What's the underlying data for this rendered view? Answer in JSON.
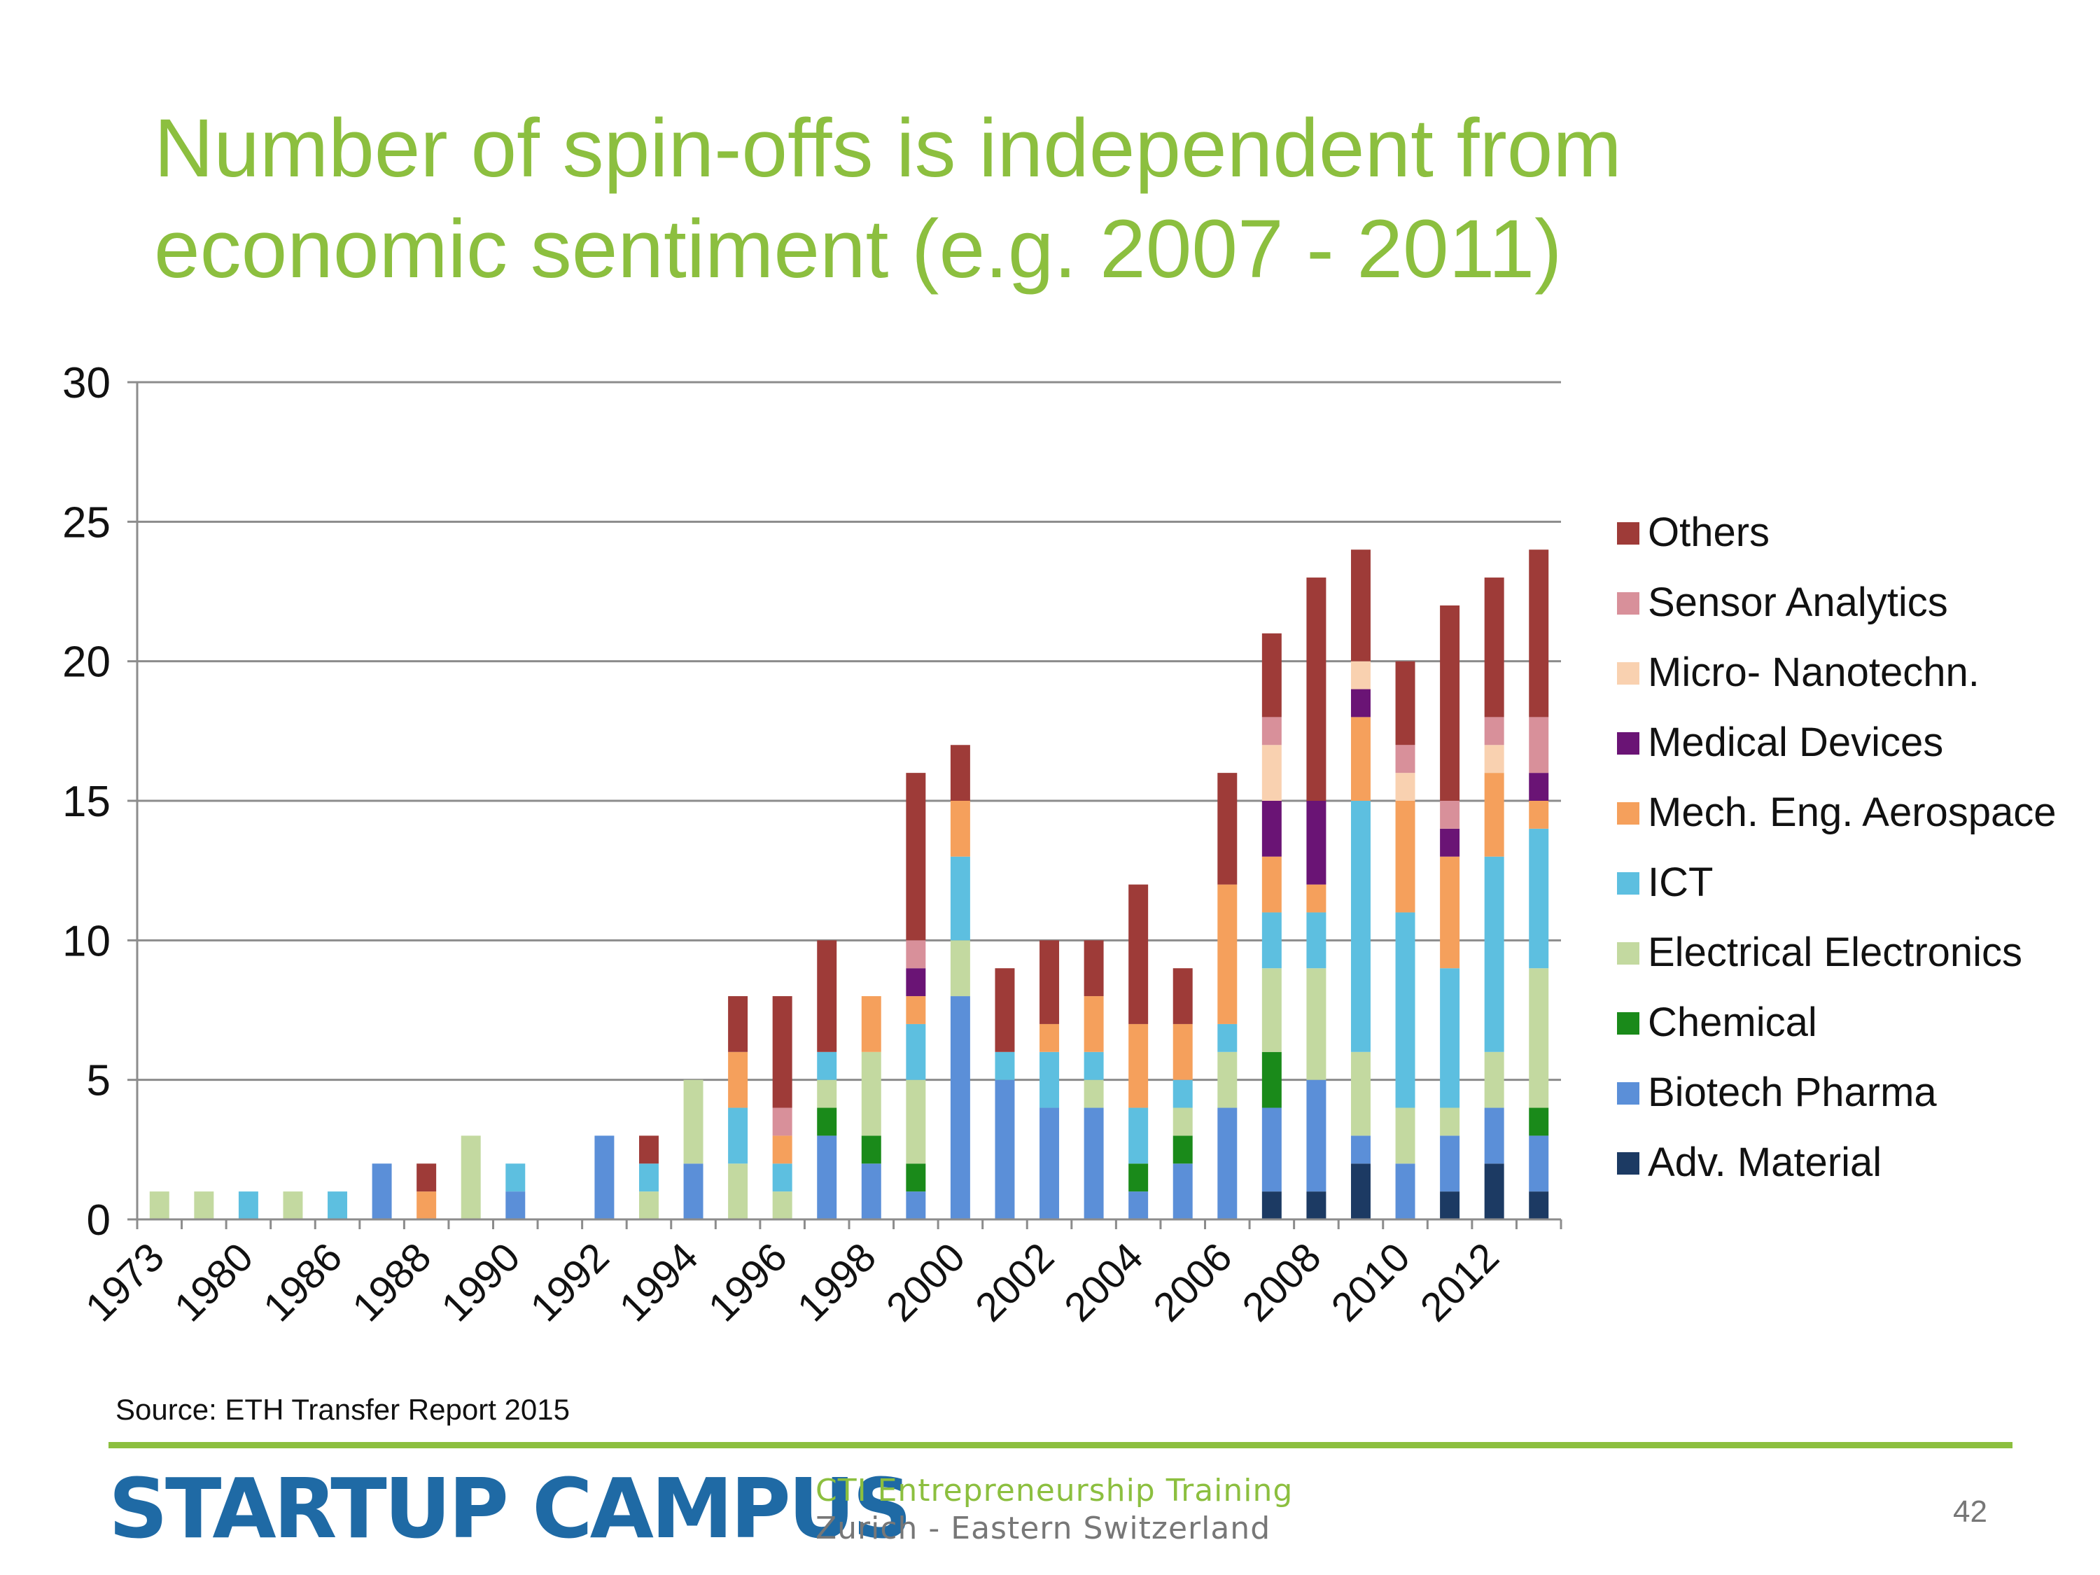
{
  "slide": {
    "title_line1": "Number of spin-offs is independent from",
    "title_line2": "economic sentiment (e.g. 2007 - 2011)",
    "source": "Source: ETH Transfer Report 2015",
    "brand": "STARTUP CAMPUS",
    "brand_sub1": "CTI Entrepreneurship Training",
    "brand_sub2": "Zurich - Eastern Switzerland",
    "page_number": "42",
    "accent_color": "#8cbf3f",
    "brand_color": "#1f6aa5"
  },
  "chart_data": {
    "type": "bar",
    "stacked": true,
    "ylim": [
      0,
      30
    ],
    "yticks": [
      0,
      5,
      10,
      15,
      20,
      25,
      30
    ],
    "grid": true,
    "legend_position": "right",
    "x_tick_labels": [
      "1973",
      "1980",
      "1986",
      "1988",
      "1990",
      "1992",
      "1994",
      "1996",
      "1998",
      "2000",
      "2002",
      "2004",
      "2006",
      "2008",
      "2010",
      "2012"
    ],
    "bar_count": 32,
    "series": [
      {
        "name": "Adv. Material",
        "color": "#1c3a63",
        "values": [
          0,
          0,
          0,
          0,
          0,
          0,
          0,
          0,
          0,
          0,
          0,
          0,
          0,
          0,
          0,
          0,
          0,
          0,
          0,
          0,
          0,
          0,
          0,
          0,
          0,
          1,
          1,
          2,
          0,
          1,
          2,
          1
        ]
      },
      {
        "name": "Biotech Pharma",
        "color": "#5b8fd8",
        "values": [
          0,
          0,
          0,
          0,
          0,
          2,
          0,
          0,
          1,
          0,
          3,
          0,
          2,
          0,
          0,
          3,
          2,
          1,
          8,
          5,
          4,
          4,
          1,
          2,
          4,
          3,
          4,
          1,
          2,
          2,
          2,
          2
        ]
      },
      {
        "name": "Chemical",
        "color": "#1a8a1a",
        "values": [
          0,
          0,
          0,
          0,
          0,
          0,
          0,
          0,
          0,
          0,
          0,
          0,
          0,
          0,
          0,
          1,
          1,
          1,
          0,
          0,
          0,
          0,
          1,
          1,
          0,
          2,
          0,
          0,
          0,
          0,
          0,
          1
        ]
      },
      {
        "name": "Electrical Electronics",
        "color": "#c3d9a0",
        "values": [
          1,
          1,
          0,
          1,
          0,
          0,
          0,
          3,
          0,
          0,
          0,
          1,
          3,
          2,
          1,
          1,
          3,
          3,
          2,
          0,
          0,
          1,
          0,
          1,
          2,
          3,
          4,
          3,
          2,
          1,
          2,
          5
        ]
      },
      {
        "name": "ICT",
        "color": "#5dbfe0",
        "values": [
          0,
          0,
          1,
          0,
          1,
          0,
          0,
          0,
          1,
          0,
          0,
          1,
          0,
          2,
          1,
          1,
          0,
          2,
          3,
          1,
          2,
          1,
          2,
          1,
          1,
          2,
          2,
          9,
          7,
          5,
          7,
          5
        ]
      },
      {
        "name": "Mech. Eng. Aerospace",
        "color": "#f5a05c",
        "values": [
          0,
          0,
          0,
          0,
          0,
          0,
          1,
          0,
          0,
          0,
          0,
          0,
          0,
          2,
          1,
          0,
          2,
          1,
          2,
          0,
          1,
          2,
          3,
          2,
          5,
          2,
          1,
          3,
          4,
          4,
          3,
          1
        ]
      },
      {
        "name": "Medical Devices",
        "color": "#6a1475",
        "values": [
          0,
          0,
          0,
          0,
          0,
          0,
          0,
          0,
          0,
          0,
          0,
          0,
          0,
          0,
          0,
          0,
          0,
          1,
          0,
          0,
          0,
          0,
          0,
          0,
          0,
          2,
          3,
          1,
          0,
          1,
          0,
          1
        ]
      },
      {
        "name": "Micro- Nanotechn.",
        "color": "#f9d1b0",
        "values": [
          0,
          0,
          0,
          0,
          0,
          0,
          0,
          0,
          0,
          0,
          0,
          0,
          0,
          0,
          0,
          0,
          0,
          0,
          0,
          0,
          0,
          0,
          0,
          0,
          0,
          2,
          0,
          1,
          1,
          0,
          1,
          0
        ]
      },
      {
        "name": "Sensor Analytics",
        "color": "#d8909a",
        "values": [
          0,
          0,
          0,
          0,
          0,
          0,
          0,
          0,
          0,
          0,
          0,
          0,
          0,
          0,
          1,
          0,
          0,
          1,
          0,
          0,
          0,
          0,
          0,
          0,
          0,
          1,
          0,
          0,
          1,
          1,
          1,
          2
        ]
      },
      {
        "name": "Others",
        "color": "#9e3b38",
        "values": [
          0,
          0,
          0,
          0,
          0,
          0,
          1,
          0,
          0,
          0,
          0,
          1,
          0,
          2,
          4,
          4,
          0,
          6,
          2,
          3,
          3,
          2,
          5,
          2,
          4,
          3,
          8,
          4,
          3,
          7,
          5,
          6
        ]
      }
    ]
  }
}
